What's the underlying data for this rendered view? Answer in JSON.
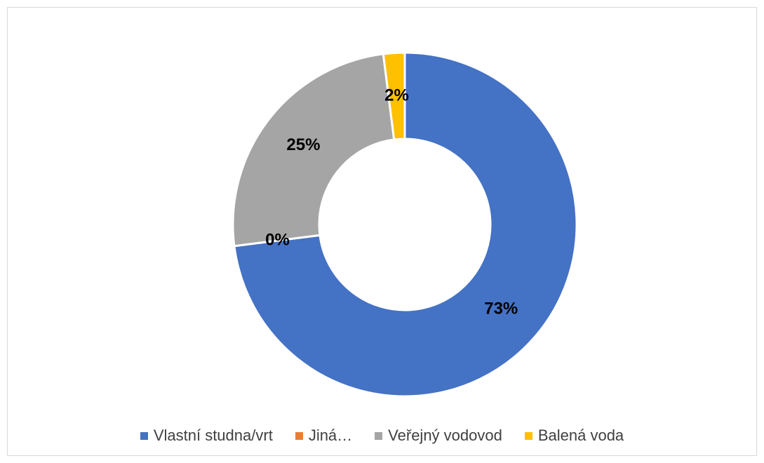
{
  "chart_data": {
    "type": "donut",
    "categories": [
      "Vlastní studna/vrt",
      "Jiná…",
      "Veřejný vodovod",
      "Balená voda"
    ],
    "values": [
      73,
      0,
      25,
      2
    ],
    "value_labels": [
      "73%",
      "0%",
      "25%",
      "2%"
    ],
    "colors": [
      "#4472c4",
      "#ed7d31",
      "#a5a5a5",
      "#ffc000"
    ],
    "legend": "bottom"
  }
}
